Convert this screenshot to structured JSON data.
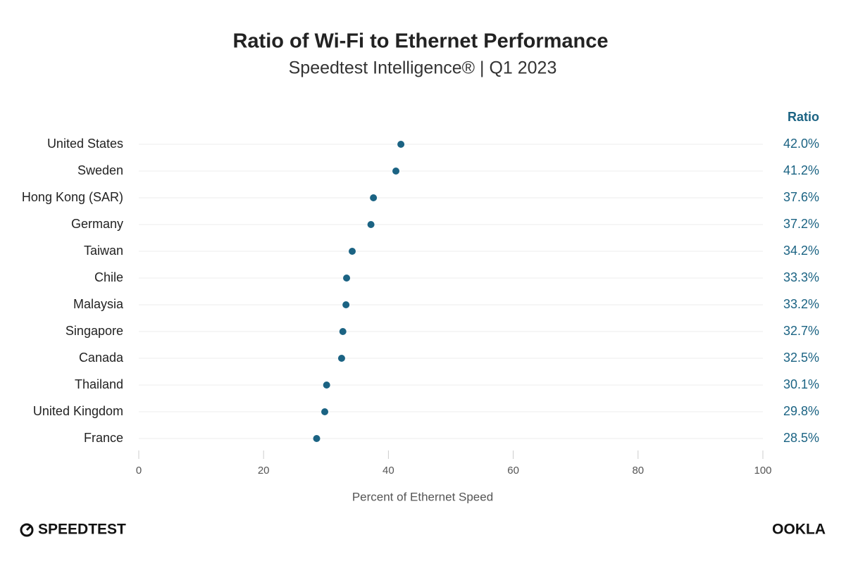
{
  "chart_data": {
    "type": "dot",
    "title": "Ratio of Wi-Fi to Ethernet Performance",
    "subtitle": "Speedtest Intelligence® | Q1 2023",
    "value_column_header": "Ratio",
    "x_label": "Percent of Ethernet Speed",
    "categories": [
      "United States",
      "Sweden",
      "Hong Kong (SAR)",
      "Germany",
      "Taiwan",
      "Chile",
      "Malaysia",
      "Singapore",
      "Canada",
      "Thailand",
      "United Kingdom",
      "France"
    ],
    "values": [
      42.0,
      41.2,
      37.6,
      37.2,
      34.2,
      33.3,
      33.2,
      32.7,
      32.5,
      30.1,
      29.8,
      28.5
    ],
    "value_labels": [
      "42.0%",
      "41.2%",
      "37.6%",
      "37.2%",
      "34.2%",
      "33.3%",
      "33.2%",
      "32.7%",
      "32.5%",
      "30.1%",
      "29.8%",
      "28.5%"
    ],
    "color": "#1b6383",
    "xlim": [
      0,
      100
    ],
    "xticks": [
      0,
      20,
      40,
      60,
      80,
      100
    ]
  },
  "logos": {
    "left": "SPEEDTEST",
    "right": "OOKLA"
  }
}
